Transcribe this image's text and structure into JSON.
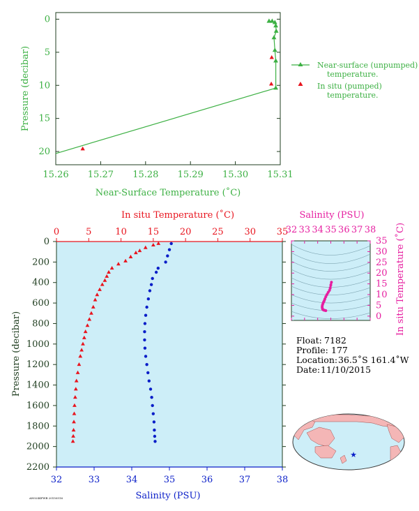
{
  "colors": {
    "green": "#3cb043",
    "red": "#e8141e",
    "blue": "#0a1ec8",
    "magenta": "#e61ea0",
    "panel_bg": "#cdeef8",
    "axis_dark": "#1f3d1f"
  },
  "chart_data": [
    {
      "type": "scatter",
      "xlabel": "Near-Surface Temperature (˚C)",
      "ylabel": "Pressure (decibar)",
      "xlim": [
        15.26,
        15.31
      ],
      "ylim": [
        22,
        -1
      ],
      "x_ticks": [
        "15.26",
        "15.27",
        "15.28",
        "15.29",
        "15.30",
        "15.31"
      ],
      "y_ticks": [
        "0",
        "5",
        "10",
        "15",
        "20"
      ],
      "legend": {
        "position": "right",
        "entries": [
          {
            "line1": "Near-surface (unpumped)",
            "line2": "temperature."
          },
          {
            "line1": "In situ (pumped)",
            "line2": "temperature."
          }
        ]
      },
      "series": [
        {
          "name": "Near-surface (unpumped) temperature.",
          "points": [
            [
              15.3075,
              0.3
            ],
            [
              15.3082,
              0.3
            ],
            [
              15.3088,
              0.5
            ],
            [
              15.309,
              1.0
            ],
            [
              15.3091,
              1.8
            ],
            [
              15.3086,
              2.8
            ],
            [
              15.3088,
              4.7
            ],
            [
              15.309,
              6.3
            ],
            [
              15.309,
              10.4
            ],
            [
              15.26,
              20.3
            ]
          ]
        },
        {
          "name": "In situ (pumped) temperature.",
          "points": [
            [
              15.3081,
              5.8
            ],
            [
              15.308,
              9.8
            ],
            [
              15.266,
              19.6
            ]
          ]
        }
      ]
    },
    {
      "type": "scatter",
      "title": "In situ Temperature (˚C)",
      "xlabel": "Salinity (PSU)",
      "ylabel": "Pressure (decibar)",
      "temp_range": [
        0,
        35
      ],
      "salinity_range": [
        32,
        38
      ],
      "pressure_range": [
        0,
        2200
      ],
      "temp_ticks": [
        "0",
        "5",
        "10",
        "15",
        "20",
        "25",
        "30",
        "35"
      ],
      "salinity_ticks": [
        "32",
        "33",
        "34",
        "35",
        "36",
        "37",
        "38"
      ],
      "pressure_ticks": [
        "0",
        "200",
        "400",
        "600",
        "800",
        "1000",
        "1200",
        "1400",
        "1600",
        "1800",
        "2000",
        "2200"
      ],
      "temperature_profile": [
        [
          15.8,
          20
        ],
        [
          15.0,
          35
        ],
        [
          13.8,
          60
        ],
        [
          12.9,
          90
        ],
        [
          12.3,
          110
        ],
        [
          11.5,
          150
        ],
        [
          10.7,
          190
        ],
        [
          9.6,
          220
        ],
        [
          8.6,
          260
        ],
        [
          8.1,
          300
        ],
        [
          7.8,
          340
        ],
        [
          7.5,
          380
        ],
        [
          7.1,
          420
        ],
        [
          6.7,
          470
        ],
        [
          6.3,
          520
        ],
        [
          6.0,
          570
        ],
        [
          5.7,
          640
        ],
        [
          5.4,
          700
        ],
        [
          5.1,
          760
        ],
        [
          4.8,
          820
        ],
        [
          4.5,
          880
        ],
        [
          4.3,
          940
        ],
        [
          4.1,
          1000
        ],
        [
          3.9,
          1060
        ],
        [
          3.7,
          1120
        ],
        [
          3.5,
          1200
        ],
        [
          3.3,
          1280
        ],
        [
          3.1,
          1360
        ],
        [
          3.0,
          1440
        ],
        [
          2.9,
          1520
        ],
        [
          2.8,
          1600
        ],
        [
          2.75,
          1680
        ],
        [
          2.7,
          1760
        ],
        [
          2.65,
          1840
        ],
        [
          2.6,
          1900
        ],
        [
          2.55,
          1950
        ]
      ],
      "salinity_profile": [
        [
          35.05,
          20
        ],
        [
          35.0,
          80
        ],
        [
          34.95,
          140
        ],
        [
          34.9,
          200
        ],
        [
          34.7,
          260
        ],
        [
          34.65,
          300
        ],
        [
          34.55,
          360
        ],
        [
          34.52,
          420
        ],
        [
          34.48,
          480
        ],
        [
          34.44,
          560
        ],
        [
          34.4,
          640
        ],
        [
          34.37,
          720
        ],
        [
          34.35,
          800
        ],
        [
          34.34,
          880
        ],
        [
          34.34,
          960
        ],
        [
          34.35,
          1040
        ],
        [
          34.37,
          1120
        ],
        [
          34.4,
          1200
        ],
        [
          34.43,
          1280
        ],
        [
          34.46,
          1360
        ],
        [
          34.5,
          1440
        ],
        [
          34.53,
          1520
        ],
        [
          34.55,
          1600
        ],
        [
          34.57,
          1680
        ],
        [
          34.59,
          1760
        ],
        [
          34.6,
          1840
        ],
        [
          34.61,
          1900
        ],
        [
          34.62,
          1950
        ]
      ]
    },
    {
      "type": "scatter",
      "title": "Salinity (PSU)",
      "ylabel": "In situ Temperature (˚C)",
      "salinity_range": [
        32,
        38
      ],
      "temp_range": [
        -2,
        35
      ],
      "salinity_ticks": [
        "32",
        "33",
        "34",
        "35",
        "36",
        "37",
        "38"
      ],
      "temp_ticks": [
        "0",
        "5",
        "10",
        "15",
        "20",
        "25",
        "30",
        "35"
      ],
      "points": [
        [
          35.05,
          15.8
        ],
        [
          35.0,
          14.5
        ],
        [
          34.95,
          13.0
        ],
        [
          34.9,
          12.0
        ],
        [
          34.8,
          11.0
        ],
        [
          34.7,
          10.0
        ],
        [
          34.62,
          9.0
        ],
        [
          34.55,
          8.0
        ],
        [
          34.5,
          7.2
        ],
        [
          34.45,
          6.5
        ],
        [
          34.4,
          5.8
        ],
        [
          34.36,
          5.0
        ],
        [
          34.34,
          4.3
        ],
        [
          34.35,
          3.7
        ],
        [
          34.38,
          3.2
        ],
        [
          34.43,
          2.9
        ],
        [
          34.5,
          2.7
        ],
        [
          34.58,
          2.6
        ],
        [
          34.62,
          2.55
        ]
      ]
    }
  ],
  "info": {
    "float_label": "Float:",
    "float_value": "7182",
    "profile_label": "Profile:",
    "profile_value": "177",
    "location_label": "Location:",
    "location_value": "36.5˚S  161.4˚W",
    "date_label": "Date:",
    "date_value": "11/10/2015"
  },
  "footer": {
    "code": "AN0244FWB 20150516"
  }
}
